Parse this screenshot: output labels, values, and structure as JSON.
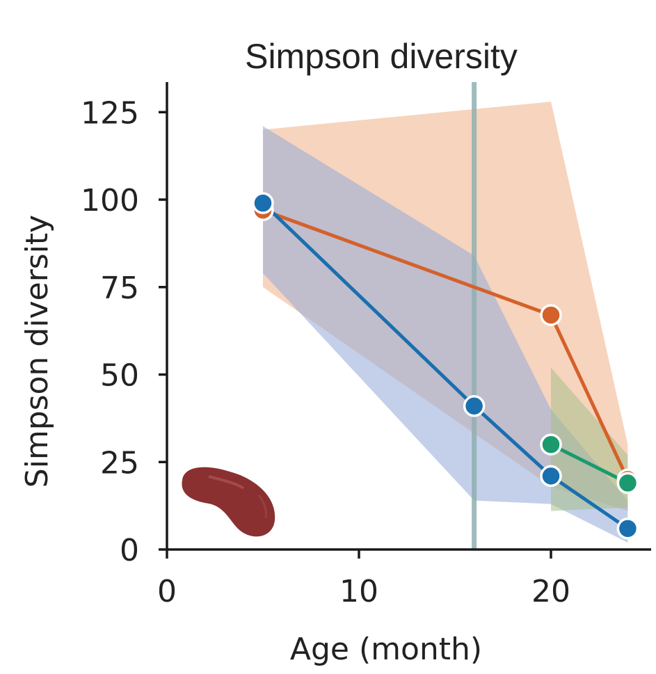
{
  "chart_data": {
    "type": "line",
    "title": "Simpson diversity",
    "xlabel": "Age (month)",
    "ylabel": "Simpson diversity",
    "xlim": [
      0,
      25
    ],
    "ylim": [
      0,
      133
    ],
    "xticks": [
      0,
      10,
      20
    ],
    "yticks": [
      0,
      25,
      50,
      75,
      100,
      125
    ],
    "grid": false,
    "legend": "none",
    "vline": {
      "x": 16,
      "color": "#8fb0b0"
    },
    "series": [
      {
        "name": "orange",
        "color": "#d4612a",
        "band_color": "#f0b088",
        "x": [
          5,
          20,
          24
        ],
        "y": [
          97,
          67,
          20
        ],
        "band_x": [
          5,
          20,
          24
        ],
        "band_upper": [
          120,
          128,
          30
        ],
        "band_lower": [
          75,
          18,
          11
        ]
      },
      {
        "name": "blue",
        "color": "#1a6fae",
        "band_color": "#93a9d8",
        "x": [
          5,
          16,
          20,
          24
        ],
        "y": [
          99,
          41,
          21,
          6
        ],
        "band_x": [
          5,
          16,
          20,
          24
        ],
        "band_upper": [
          121,
          84,
          40,
          14
        ],
        "band_lower": [
          79,
          14,
          13,
          2
        ]
      },
      {
        "name": "green",
        "color": "#1a9a6e",
        "band_color": "#a8bf88",
        "x": [
          20,
          24
        ],
        "y": [
          30,
          19
        ],
        "band_x": [
          20,
          24
        ],
        "band_upper": [
          52,
          27
        ],
        "band_lower": [
          11,
          12
        ]
      }
    ],
    "icon": "kidney-icon",
    "icon_color": "#8a3030"
  }
}
